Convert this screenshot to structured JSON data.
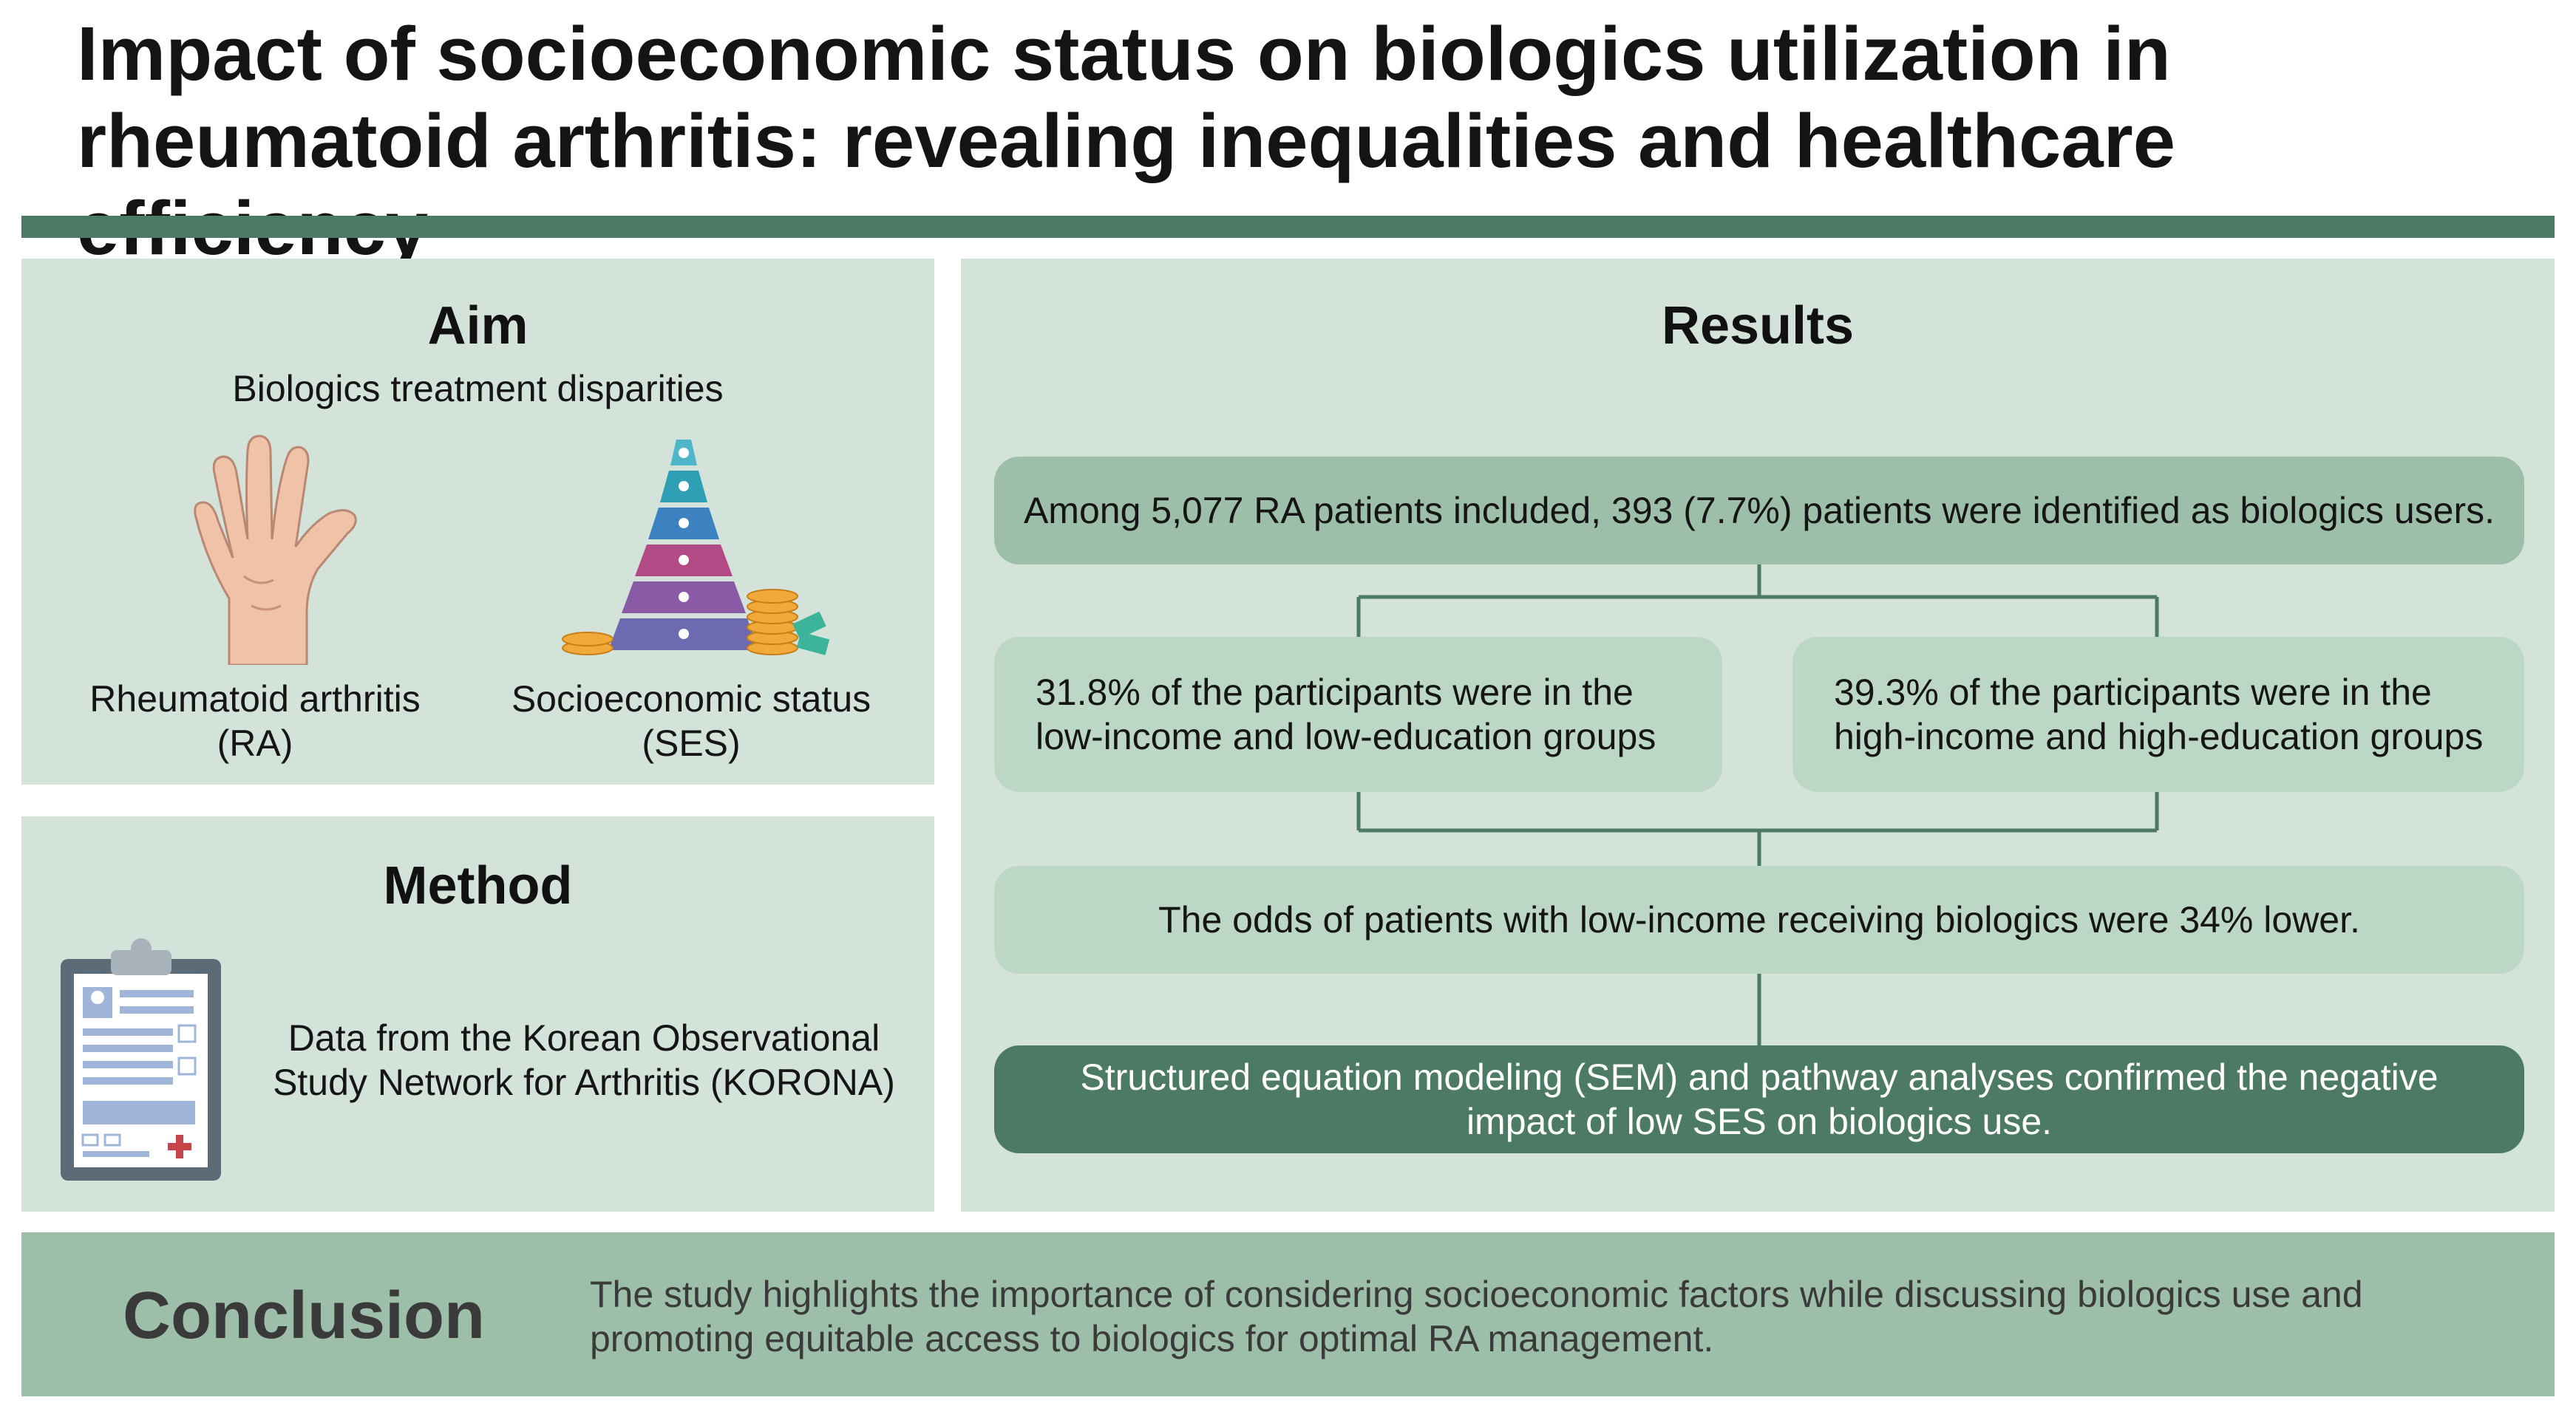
{
  "title": {
    "line1": "Impact of socioeconomic status on biologics utilization in",
    "line2": "rheumatoid arthritis: revealing inequalities and healthcare efficiency"
  },
  "aim": {
    "heading": "Aim",
    "subtitle": "Biologics treatment disparities",
    "ra_label_1": "Rheumatoid arthritis",
    "ra_label_2": "(RA)",
    "ses_label_1": "Socioeconomic status",
    "ses_label_2": "(SES)"
  },
  "method": {
    "heading": "Method",
    "text_1": "Data from the Korean Observational",
    "text_2": "Study Network for Arthritis (KORONA)"
  },
  "results": {
    "heading": "Results",
    "box_included": "Among 5,077 RA patients included, 393 (7.7%) patients were identified as biologics users.",
    "box_low_1": "31.8% of the participants were in the",
    "box_low_2": "low-income and low-education groups",
    "box_high_1": "39.3% of the participants were in the",
    "box_high_2": "high-income and high-education groups",
    "box_odds": "The odds of patients with low-income receiving biologics were 34% lower.",
    "box_sem_1": "Structured equation modeling (SEM) and pathway analyses confirmed the negative",
    "box_sem_2": "impact of low SES on biologics use."
  },
  "conclusion": {
    "label": "Conclusion",
    "text_1": "The study highlights the importance of considering socioeconomic factors while discussing biologics use and",
    "text_2": "promoting equitable access to biologics for optimal RA management."
  },
  "icons": [
    "hand-icon",
    "pyramid-icon",
    "clipboard-icon"
  ],
  "colors": {
    "dark_green": "#4d7a64",
    "panel_green": "#d3e3d9",
    "box_green": "#bdd7c7",
    "mid_green": "#9dbfa9"
  }
}
